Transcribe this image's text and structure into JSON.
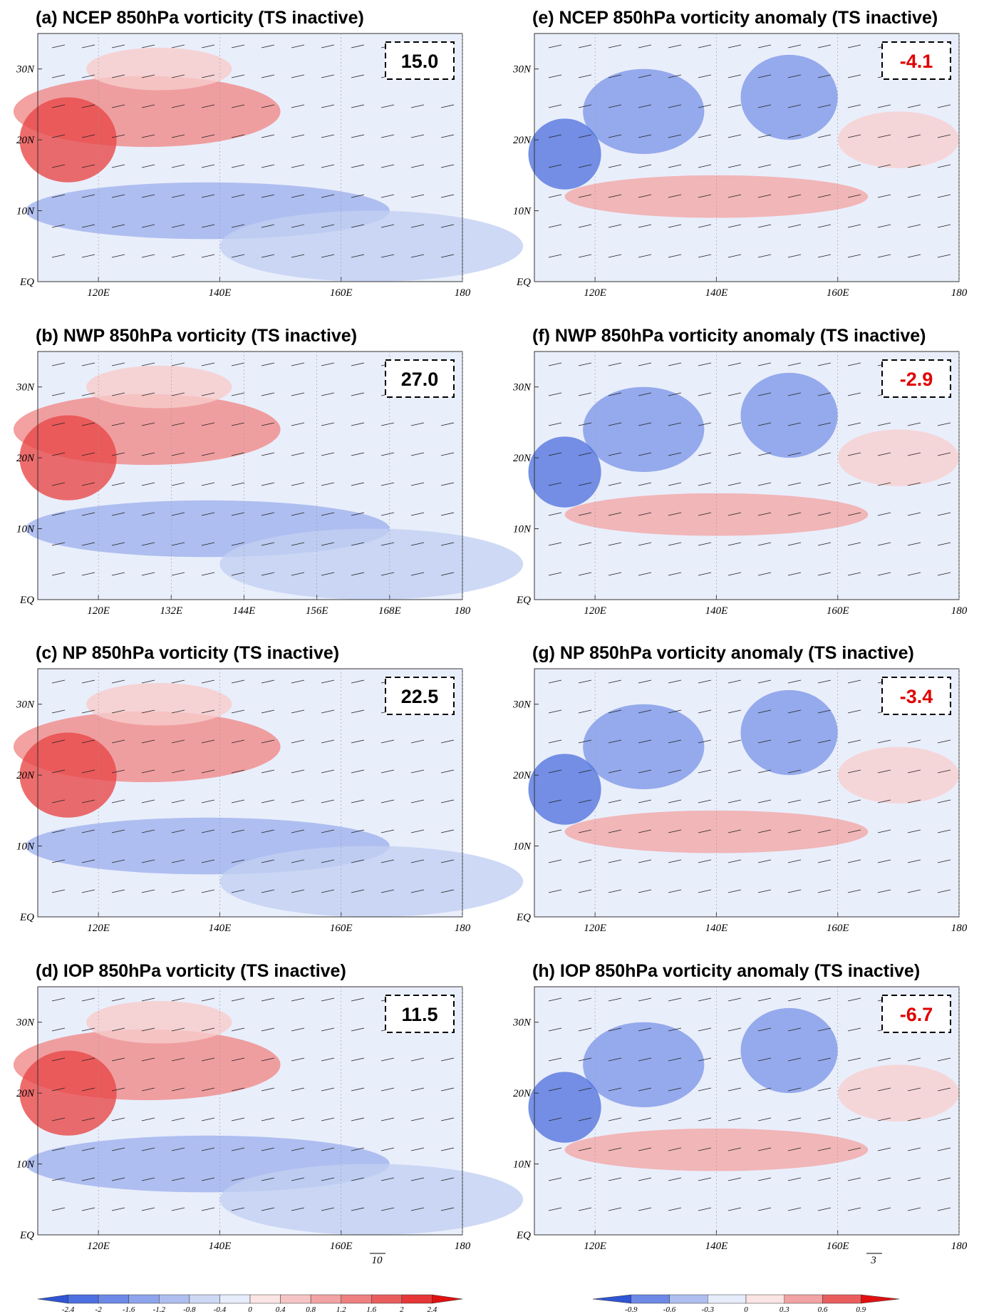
{
  "figure": {
    "panels": [
      {
        "title": "(a) NCEP 850hPa vorticity (TS inactive)",
        "value": "15.0",
        "xticks": [
          {
            "value": 120,
            "label": "120E"
          },
          {
            "value": 140,
            "label": "140E"
          },
          {
            "value": 160,
            "label": "160E"
          },
          180
        ]
      },
      {
        "title": "(b) NWP 850hPa vorticity (TS inactive)",
        "value": "27.0",
        "xticks": [
          {
            "value": 120,
            "label": "120E"
          },
          {
            "value": 132,
            "label": "132E"
          },
          {
            "value": 144,
            "label": "144E"
          },
          {
            "value": 156,
            "label": "156E"
          },
          {
            "value": 168,
            "label": "168E"
          },
          180
        ]
      },
      {
        "title": "(c) NP 850hPa vorticity (TS inactive)",
        "value": "22.5",
        "xticks": [
          {
            "value": 120,
            "label": "120E"
          },
          {
            "value": 140,
            "label": "140E"
          },
          {
            "value": 160,
            "label": "160E"
          },
          180
        ]
      },
      {
        "title": "(d) IOP 850hPa vorticity (TS inactive)",
        "value": "11.5",
        "xticks": [
          {
            "value": 120,
            "label": "120E"
          },
          {
            "value": 140,
            "label": "140E"
          },
          {
            "value": 160,
            "label": "160E"
          },
          180
        ],
        "vector_label": "10"
      },
      {
        "title": "(e) NCEP 850hPa vorticity anomaly (TS inactive)",
        "value": "-4.1",
        "xticks": [
          {
            "value": 120,
            "label": "120E"
          },
          {
            "value": 140,
            "label": "140E"
          },
          {
            "value": 160,
            "label": "160E"
          },
          180
        ]
      },
      {
        "title": "(f) NWP 850hPa vorticity anomaly (TS inactive)",
        "value": "-2.9",
        "xticks": [
          {
            "value": 120,
            "label": "120E"
          },
          {
            "value": 140,
            "label": "140E"
          },
          {
            "value": 160,
            "label": "160E"
          },
          180
        ]
      },
      {
        "title": "(g) NP 850hPa vorticity anomaly (TS inactive)",
        "value": "-3.4",
        "xticks": [
          {
            "value": 120,
            "label": "120E"
          },
          {
            "value": 140,
            "label": "140E"
          },
          {
            "value": 160,
            "label": "160E"
          },
          180
        ]
      },
      {
        "title": "(h) IOP 850hPa vorticity anomaly (TS inactive)",
        "value": "-6.7",
        "xticks": [
          {
            "value": 120,
            "label": "120E"
          },
          {
            "value": 140,
            "label": "140E"
          },
          {
            "value": 160,
            "label": "160E"
          },
          180
        ],
        "vector_label": "3"
      }
    ],
    "xlim": [
      110,
      180
    ],
    "ylim": [
      0,
      35
    ],
    "yticks": [
      {
        "value": 0,
        "label": "EQ"
      },
      {
        "value": 10,
        "label": "10N"
      },
      {
        "value": 20,
        "label": "20N"
      },
      {
        "value": 30,
        "label": "30N"
      }
    ],
    "colorbars": [
      {
        "labels": [
          -2.4,
          -2,
          -1.6,
          -1.2,
          -0.8,
          -0.4,
          0,
          0.4,
          0.8,
          1.2,
          1.6,
          2,
          2.4
        ],
        "colors": [
          "#2f55d4",
          "#4d6fe0",
          "#6d89e6",
          "#8ea4ec",
          "#aebfef",
          "#cdd8f4",
          "#e6ecfa",
          "#fbe4e4",
          "#f6c4c4",
          "#f2a3a3",
          "#ee8080",
          "#ea5d5d",
          "#e63636",
          "#e01010"
        ]
      },
      {
        "labels": [
          -0.9,
          -0.6,
          -0.3,
          0,
          0.3,
          0.6,
          0.9
        ],
        "colors": [
          "#2f55d4",
          "#6d89e6",
          "#aebfef",
          "#e6ecfa",
          "#fbe4e4",
          "#f2a3a3",
          "#ea5d5d",
          "#e01010"
        ]
      }
    ]
  }
}
